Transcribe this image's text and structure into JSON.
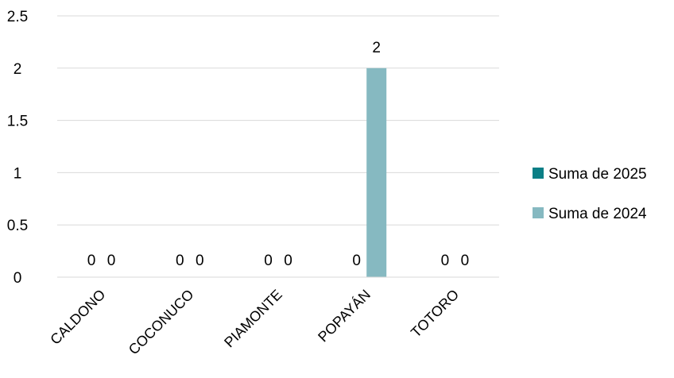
{
  "chart_data": {
    "type": "bar",
    "title": "",
    "xlabel": "",
    "ylabel": "",
    "categories": [
      "CALDONO",
      "COCONUCO",
      "PIAMONTE",
      "POPAYÁN",
      "TOTORO"
    ],
    "series": [
      {
        "name": "Suma de 2025",
        "color": "#0b7f86",
        "values": [
          0,
          0,
          0,
          0,
          0
        ],
        "labels": [
          "0",
          "0",
          "0",
          "0",
          "0"
        ]
      },
      {
        "name": "Suma de 2024",
        "color": "#86b9c1",
        "values": [
          0,
          0,
          0,
          2,
          0
        ],
        "labels": [
          "0",
          "0",
          "0",
          "2",
          "0"
        ]
      }
    ],
    "ylim": [
      0,
      2.5
    ],
    "yticks": [
      0,
      0.5,
      1,
      1.5,
      2,
      2.5
    ],
    "ytick_labels": [
      "0",
      "0.5",
      "1",
      "1.5",
      "2",
      "2.5"
    ],
    "grid": true,
    "gridline_color": "#d9d9d9",
    "legend_position": "right"
  }
}
